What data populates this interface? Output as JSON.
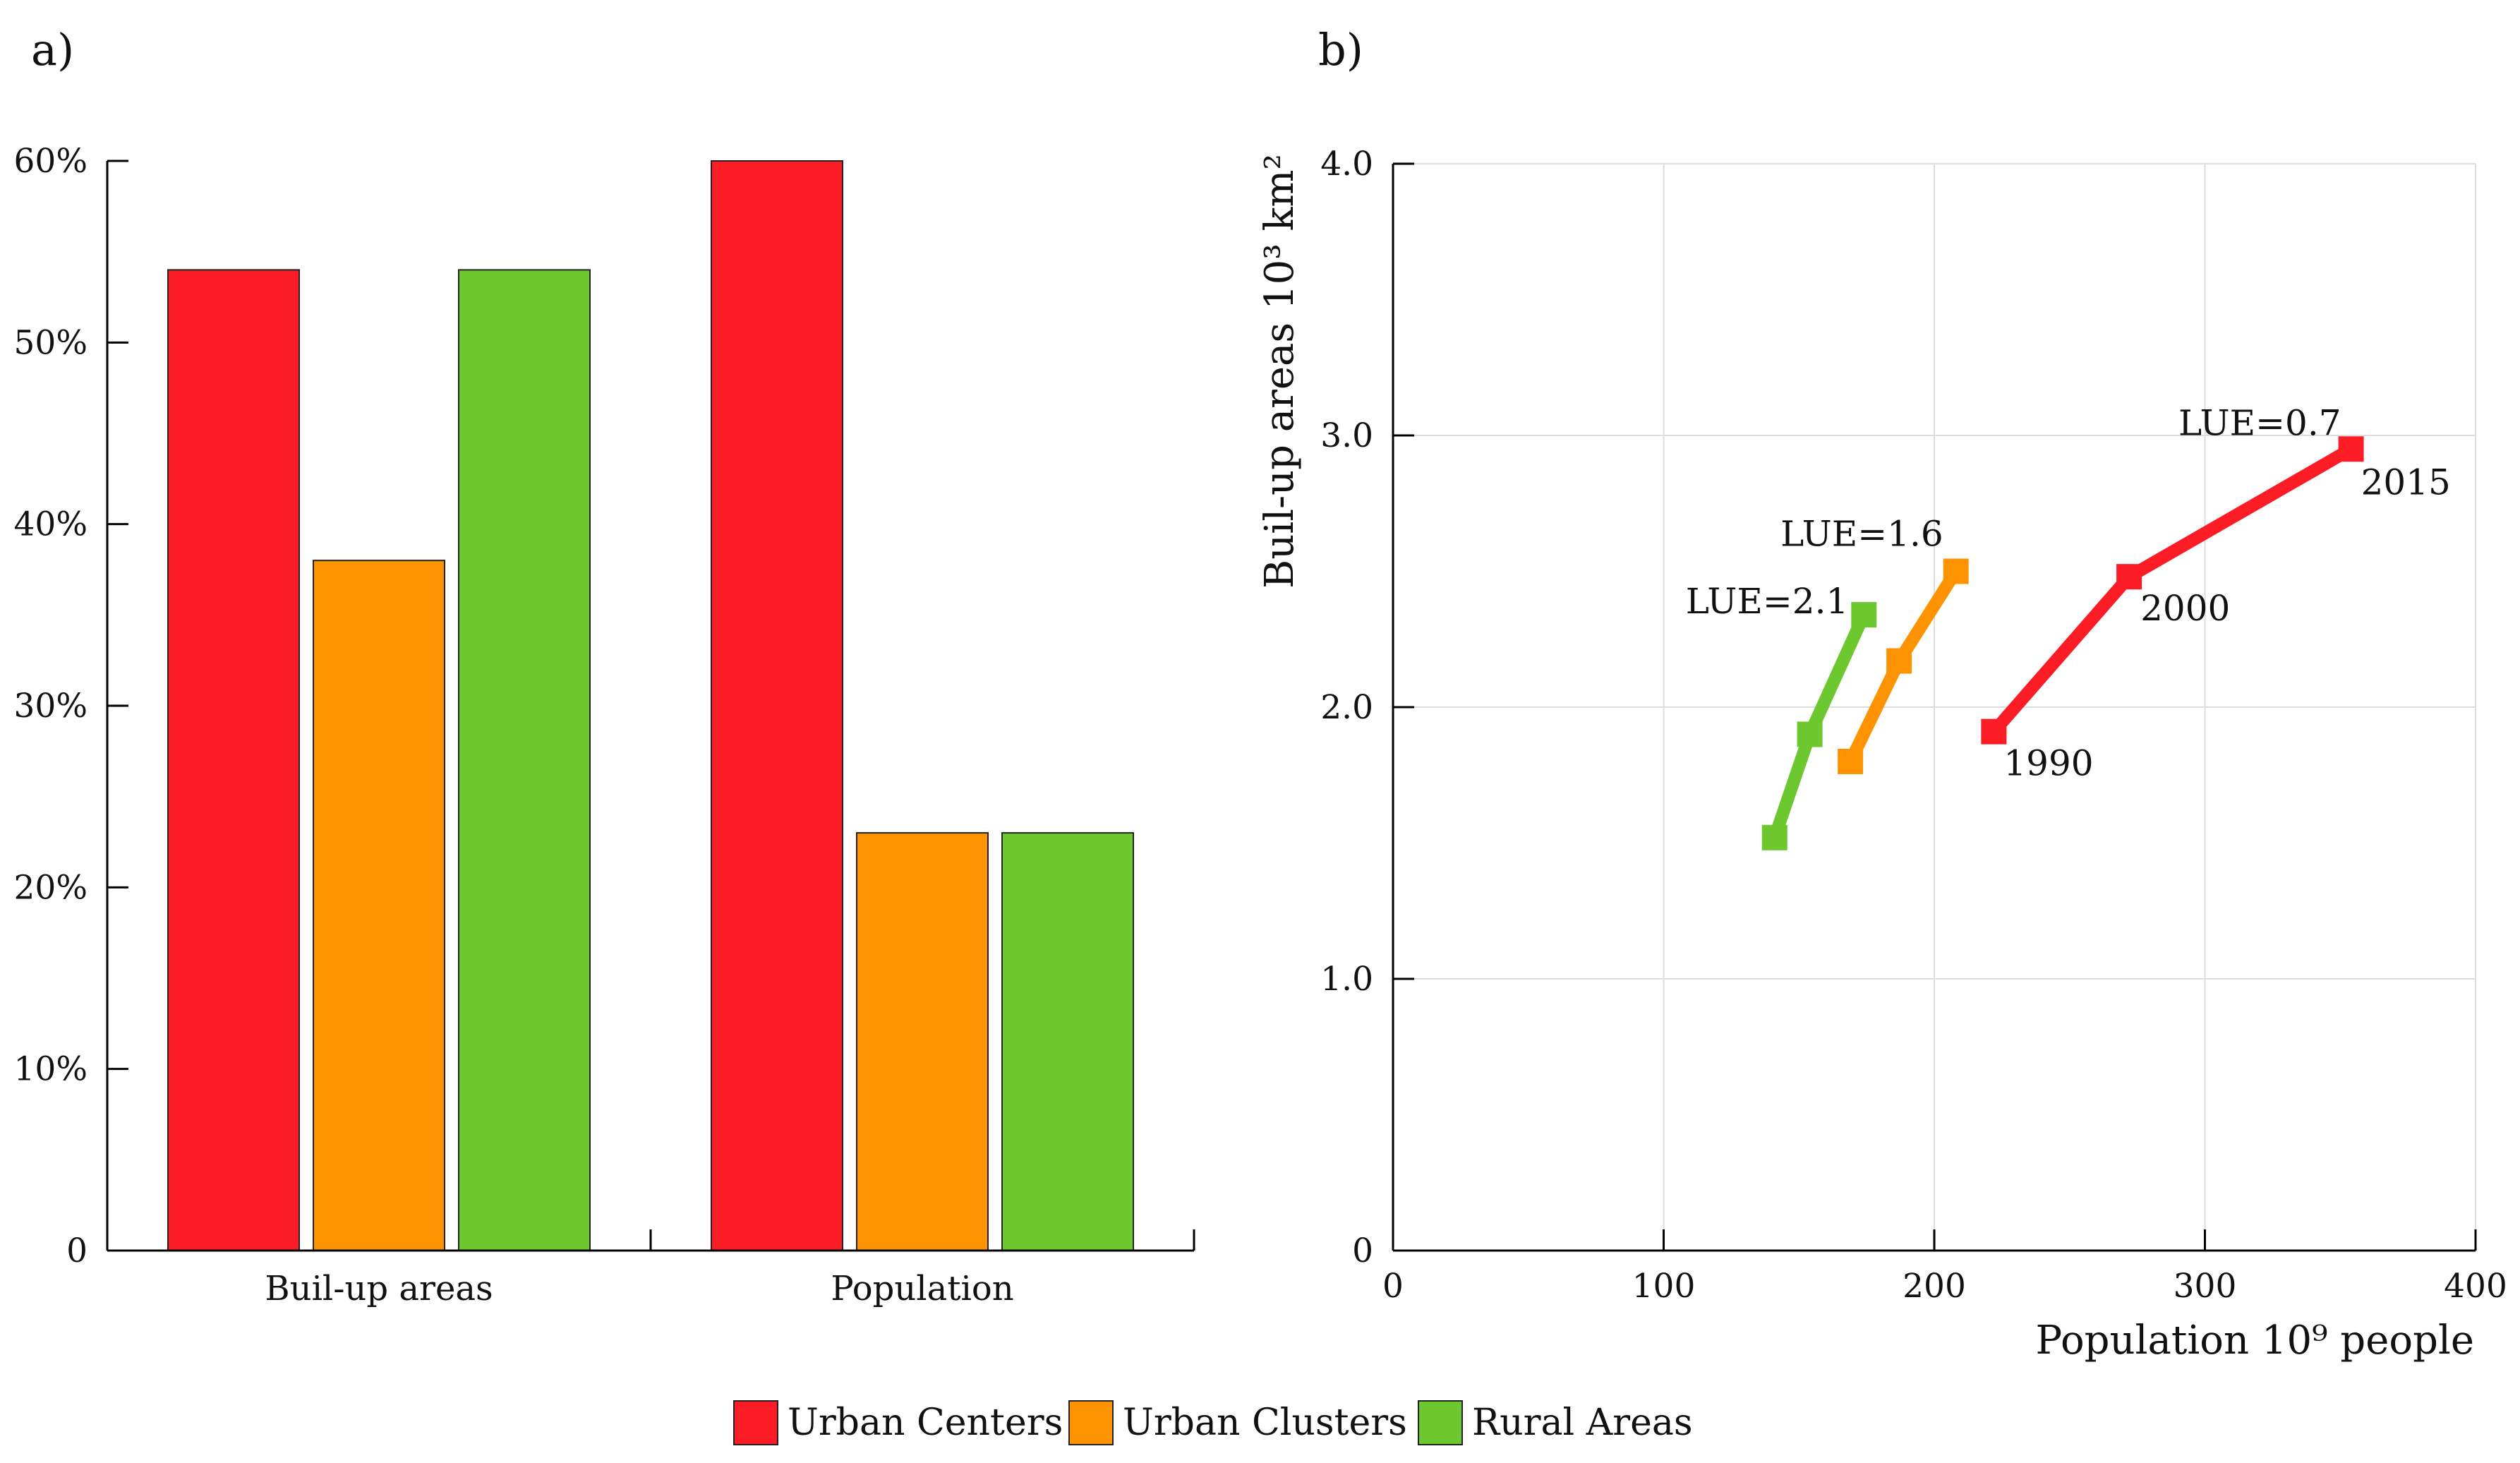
{
  "chart_data": [
    {
      "panel_label": "a)",
      "type": "bar",
      "categories": [
        "Buil-up areas",
        "Population"
      ],
      "series": [
        {
          "name": "Urban Centers",
          "color": "#fc1c26",
          "values": [
            54,
            60
          ]
        },
        {
          "name": "Urban Clusters",
          "color": "#fd9300",
          "values": [
            38,
            23
          ]
        },
        {
          "name": "Rural Areas",
          "color": "#6dc72e",
          "values": [
            54,
            23
          ]
        }
      ],
      "ylim": [
        0,
        60
      ],
      "yticks": [
        {
          "value": 0,
          "label": "0"
        },
        {
          "value": 10,
          "label": "10%"
        },
        {
          "value": 20,
          "label": "20%"
        },
        {
          "value": 30,
          "label": "30%"
        },
        {
          "value": 40,
          "label": "40%"
        },
        {
          "value": 50,
          "label": "50%"
        },
        {
          "value": 60,
          "label": "60%"
        }
      ],
      "xlabel": "",
      "ylabel": "",
      "grid": false
    },
    {
      "panel_label": "b)",
      "type": "line",
      "xlabel": "Population 10⁹ people",
      "ylabel": "Buil-up areas 10³ km²",
      "xlim": [
        0,
        400
      ],
      "ylim": [
        0,
        4
      ],
      "xticks": [
        {
          "value": 0,
          "label": "0"
        },
        {
          "value": 100,
          "label": "100"
        },
        {
          "value": 200,
          "label": "200"
        },
        {
          "value": 300,
          "label": "300"
        },
        {
          "value": 400,
          "label": "400"
        }
      ],
      "yticks": [
        {
          "value": 0,
          "label": "0"
        },
        {
          "value": 1,
          "label": "1.0"
        },
        {
          "value": 2,
          "label": "2.0"
        },
        {
          "value": 3,
          "label": "3.0"
        },
        {
          "value": 4,
          "label": "4.0"
        }
      ],
      "grid": true,
      "series": [
        {
          "name": "Urban Centers",
          "color": "#fc1c26",
          "x": [
            222,
            272,
            354
          ],
          "y": [
            1.91,
            2.48,
            2.95
          ],
          "point_labels": [
            "1990",
            "2000",
            "2015"
          ],
          "annotation": "LUE=0.7"
        },
        {
          "name": "Urban Clusters",
          "color": "#fd9300",
          "x": [
            169,
            187,
            208
          ],
          "y": [
            1.8,
            2.17,
            2.5
          ],
          "annotation": "LUE=1.6"
        },
        {
          "name": "Rural Areas",
          "color": "#6dc72e",
          "x": [
            141,
            154,
            174
          ],
          "y": [
            1.52,
            1.9,
            2.34
          ],
          "annotation": "LUE=2.1"
        }
      ]
    }
  ],
  "legend": [
    {
      "label": "Urban Centers",
      "color": "#fc1c26"
    },
    {
      "label": "Urban Clusters",
      "color": "#fd9300"
    },
    {
      "label": "Rural Areas",
      "color": "#6dc72e"
    }
  ]
}
